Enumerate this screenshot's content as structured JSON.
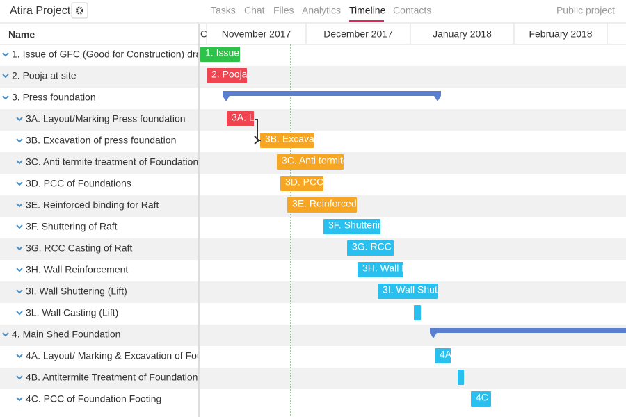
{
  "header": {
    "title": "Atira Project",
    "tabs": [
      "Tasks",
      "Chat",
      "Files",
      "Analytics",
      "Timeline",
      "Contacts"
    ],
    "visibility": "Public project"
  },
  "grid_header": {
    "name": "Name",
    "months": [
      "C",
      "November 2017",
      "December 2017",
      "January 2018",
      "February 2018"
    ]
  },
  "tasks": [
    {
      "name": "1. Issue of GFC (Good for Construction) drav",
      "bar_label": "1. Issue"
    },
    {
      "name": "2. Pooja at site",
      "bar_label": "2. Pooja"
    },
    {
      "name": "3. Press foundation"
    },
    {
      "name": "3A. Layout/Marking Press foundation",
      "bar_label": "3A. L"
    },
    {
      "name": "3B. Excavation of press foundation",
      "bar_label": "3B. Excava"
    },
    {
      "name": "3C. Anti termite treatment of Foundation",
      "bar_label": "3C. Anti termite"
    },
    {
      "name": "3D. PCC of Foundations",
      "bar_label": "3D. PCC"
    },
    {
      "name": "3E. Reinforced binding for Raft",
      "bar_label": "3E. Reinforced"
    },
    {
      "name": "3F. Shuttering of Raft",
      "bar_label": "3F. Shutterin"
    },
    {
      "name": "3G. RCC Casting of Raft",
      "bar_label": "3G. RCC"
    },
    {
      "name": "3H. Wall Reinforcement",
      "bar_label": "3H. Wall F"
    },
    {
      "name": "3I. Wall Shuttering (Lift)",
      "bar_label": "3I. Wall Shutt"
    },
    {
      "name": "3L. Wall Casting (Lift)"
    },
    {
      "name": "4. Main Shed Foundation"
    },
    {
      "name": "4A. Layout/ Marking & Excavation of Four",
      "bar_label": "4A"
    },
    {
      "name": "4B. Antitermite Treatment of Foundation"
    },
    {
      "name": "4C. PCC of Foundation Footing",
      "bar_label": "4C"
    }
  ]
}
